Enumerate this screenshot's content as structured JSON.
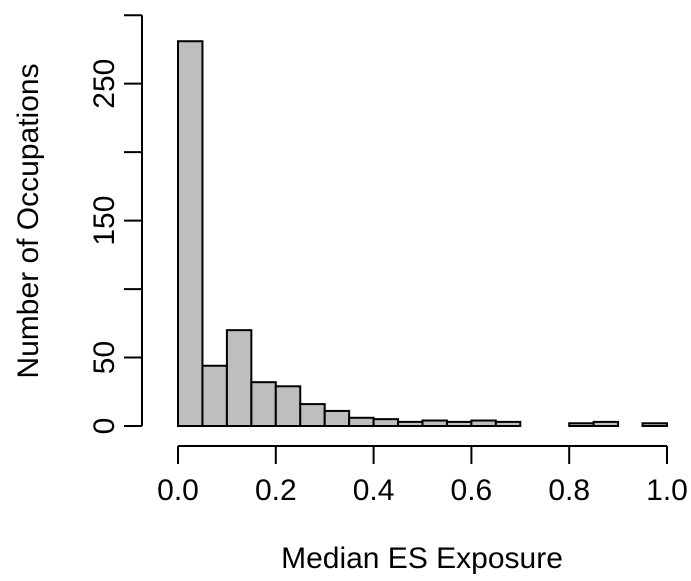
{
  "chart_data": {
    "type": "bar",
    "title": "",
    "xlabel": "Median ES Exposure",
    "ylabel": "Number of Occupations",
    "bin_edges": [
      0.0,
      0.05,
      0.1,
      0.15,
      0.2,
      0.25,
      0.3,
      0.35,
      0.4,
      0.45,
      0.5,
      0.55,
      0.6,
      0.65,
      0.7,
      0.75,
      0.8,
      0.85,
      0.9,
      0.95,
      1.0
    ],
    "values": [
      281,
      44,
      70,
      32,
      29,
      16,
      11,
      6,
      5,
      3,
      4,
      3,
      4,
      3,
      0,
      0,
      2,
      3,
      0,
      2
    ],
    "xlim": [
      0.0,
      1.0
    ],
    "ylim": [
      0,
      300
    ],
    "x_ticks": [
      "0.0",
      "0.2",
      "0.4",
      "0.6",
      "0.8",
      "1.0"
    ],
    "x_tick_values": [
      0.0,
      0.2,
      0.4,
      0.6,
      0.8,
      1.0
    ],
    "y_ticks": [
      "0",
      "50",
      "150",
      "250"
    ],
    "y_tick_values": [
      0,
      50,
      150,
      250
    ],
    "y_minor_tick_values": [
      100,
      200,
      300
    ],
    "grid": false,
    "bar_color": "#bebebe",
    "bar_edge_color": "#000000"
  }
}
